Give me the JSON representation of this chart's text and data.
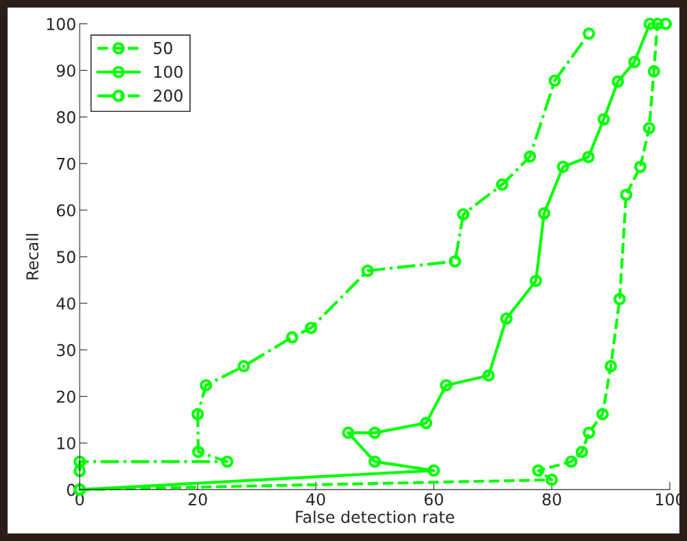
{
  "chart_data": {
    "type": "line",
    "xlabel": "False detection rate",
    "ylabel": "Recall",
    "xlim": [
      0,
      100
    ],
    "ylim": [
      0,
      100
    ],
    "xticks": [
      0,
      20,
      40,
      60,
      80,
      100
    ],
    "yticks": [
      0,
      10,
      20,
      30,
      40,
      50,
      60,
      70,
      80,
      90,
      100
    ],
    "grid": false,
    "legend": "top left",
    "marker": "circle",
    "series": [
      {
        "name": "50",
        "color": "#00ff00",
        "line_style": "dashed",
        "x": [
          0,
          80,
          77.7,
          83.3,
          85.1,
          86.3,
          88.6,
          90,
          91.5,
          92.6,
          95,
          96.5,
          97.3,
          97.9,
          99.3
        ],
        "values": [
          0,
          2.1,
          4.1,
          6,
          8.1,
          12.2,
          16.2,
          26.5,
          40.9,
          63.3,
          69.3,
          77.6,
          89.8,
          100,
          100
        ]
      },
      {
        "name": "100",
        "color": "#00ff00",
        "line_style": "solid",
        "x": [
          0,
          60,
          50,
          45.5,
          50,
          58.7,
          62.1,
          69.3,
          72.3,
          77.3,
          78.7,
          81.9,
          86.2,
          88.8,
          91.2,
          94,
          96.6
        ],
        "values": [
          0,
          4.1,
          6,
          12.2,
          12.2,
          14.3,
          22.4,
          24.5,
          36.7,
          44.8,
          59.3,
          69.3,
          71.4,
          79.5,
          87.6,
          91.8,
          100
        ]
      },
      {
        "name": "200",
        "color": "#00ff00",
        "line_style": "dashdot",
        "x": [
          0,
          0,
          25,
          20.1,
          20,
          21.4,
          27.8,
          36,
          39.2,
          48.8,
          63.6,
          65,
          71.6,
          76.3,
          80.5,
          86.3
        ],
        "values": [
          4,
          6,
          6,
          8.1,
          16.2,
          22.4,
          26.5,
          32.7,
          34.7,
          47,
          49,
          59.1,
          65.5,
          71.5,
          87.8,
          97.9
        ]
      }
    ]
  }
}
